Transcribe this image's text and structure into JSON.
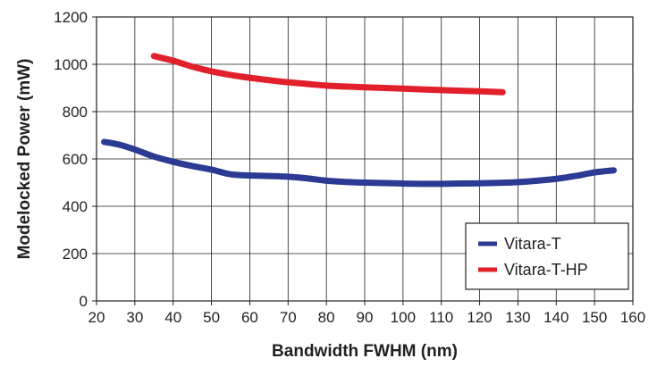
{
  "chart_data": {
    "type": "line",
    "title": "",
    "xlabel": "Bandwidth FWHM (nm)",
    "ylabel": "Modelocked Power (mW)",
    "xlim": [
      20,
      160
    ],
    "ylim": [
      0,
      1200
    ],
    "xticks": [
      "20",
      "30",
      "40",
      "50",
      "60",
      "70",
      "80",
      "90",
      "100",
      "110",
      "120",
      "130",
      "140",
      "150",
      "160"
    ],
    "yticks": [
      "0",
      "200",
      "400",
      "600",
      "800",
      "1000",
      "1200"
    ],
    "grid": true,
    "legend_position": "bottom-right",
    "series": [
      {
        "name": "Vitara-T",
        "color": "#2b3a92",
        "x": [
          22,
          26,
          30,
          35,
          40,
          45,
          50,
          55,
          60,
          65,
          70,
          75,
          80,
          85,
          90,
          95,
          100,
          105,
          110,
          115,
          120,
          125,
          130,
          135,
          140,
          145,
          150,
          155
        ],
        "y": [
          672,
          660,
          640,
          610,
          588,
          570,
          555,
          535,
          530,
          528,
          525,
          518,
          508,
          503,
          500,
          498,
          496,
          495,
          495,
          496,
          497,
          499,
          502,
          508,
          516,
          528,
          543,
          552
        ]
      },
      {
        "name": "Vitara-T-HP",
        "color": "#e2202b",
        "x": [
          35,
          40,
          45,
          50,
          55,
          60,
          65,
          70,
          75,
          80,
          85,
          90,
          95,
          100,
          105,
          110,
          115,
          120,
          126
        ],
        "y": [
          1035,
          1015,
          990,
          970,
          955,
          943,
          933,
          924,
          917,
          910,
          906,
          903,
          900,
          897,
          894,
          891,
          888,
          886,
          882
        ]
      }
    ]
  }
}
